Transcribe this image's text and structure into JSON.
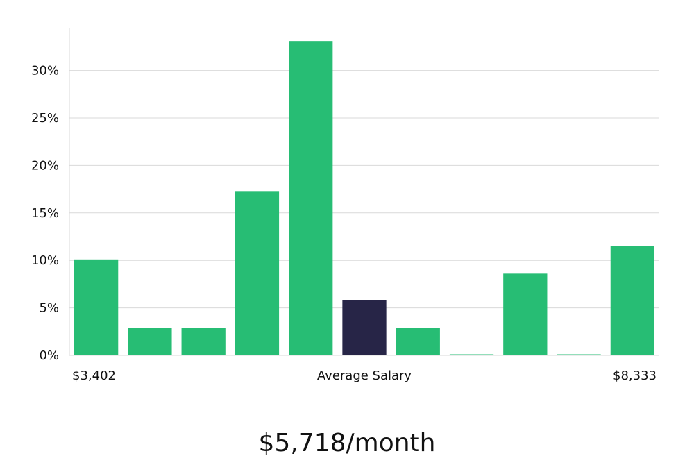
{
  "chart_data": {
    "type": "bar",
    "values": [
      10.1,
      2.9,
      2.9,
      17.3,
      33.1,
      5.8,
      2.9,
      0,
      8.6,
      0,
      11.5
    ],
    "highlight_index": 5,
    "ylim": [
      0,
      34.5
    ],
    "yticks": [
      0,
      5,
      10,
      15,
      20,
      25,
      30
    ],
    "ytick_labels": [
      "0%",
      "5%",
      "10%",
      "15%",
      "20%",
      "25%",
      "30%"
    ],
    "grid": true,
    "x_left_label": "$3,402",
    "x_center_label": "Average Salary",
    "x_right_label": "$8,333",
    "colors": {
      "bar": "#27bd74",
      "highlight": "#272547",
      "grid": "#d9d9d9",
      "text": "#111111"
    }
  },
  "salary_display": "$5,718/month"
}
